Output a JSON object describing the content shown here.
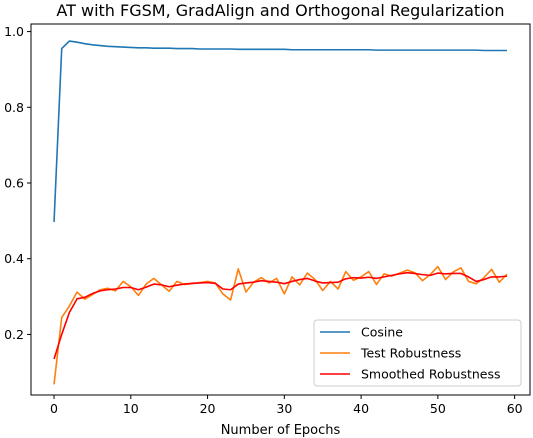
{
  "chart_data": {
    "type": "line",
    "title": "AT with FGSM, GradAlign and Orthogonal Regularization",
    "xlabel": "Number of Epochs",
    "ylabel": "",
    "xlim": [
      -3,
      62
    ],
    "ylim": [
      0.04,
      1.02
    ],
    "xticks": [
      0,
      10,
      20,
      30,
      40,
      50,
      60
    ],
    "yticks": [
      0.2,
      0.4,
      0.6,
      0.8,
      1.0
    ],
    "xtick_labels": [
      "0",
      "10",
      "20",
      "30",
      "40",
      "50",
      "60"
    ],
    "ytick_labels": [
      "0.2",
      "0.4",
      "0.6",
      "0.8",
      "1.0"
    ],
    "grid": false,
    "legend_position": "lower-right",
    "x": [
      0,
      1,
      2,
      3,
      4,
      5,
      6,
      7,
      8,
      9,
      10,
      11,
      12,
      13,
      14,
      15,
      16,
      17,
      18,
      19,
      20,
      21,
      22,
      23,
      24,
      25,
      26,
      27,
      28,
      29,
      30,
      31,
      32,
      33,
      34,
      35,
      36,
      37,
      38,
      39,
      40,
      41,
      42,
      43,
      44,
      45,
      46,
      47,
      48,
      49,
      50,
      51,
      52,
      53,
      54,
      55,
      56,
      57,
      58,
      59
    ],
    "series": [
      {
        "name": "Cosine",
        "color": "#1f77b4",
        "values": [
          0.497,
          0.955,
          0.975,
          0.972,
          0.968,
          0.965,
          0.963,
          0.961,
          0.96,
          0.959,
          0.958,
          0.957,
          0.957,
          0.956,
          0.956,
          0.956,
          0.955,
          0.955,
          0.955,
          0.954,
          0.954,
          0.954,
          0.954,
          0.954,
          0.953,
          0.953,
          0.953,
          0.953,
          0.953,
          0.953,
          0.953,
          0.952,
          0.952,
          0.952,
          0.952,
          0.952,
          0.952,
          0.952,
          0.952,
          0.952,
          0.952,
          0.952,
          0.951,
          0.951,
          0.951,
          0.951,
          0.951,
          0.951,
          0.951,
          0.951,
          0.951,
          0.951,
          0.951,
          0.951,
          0.951,
          0.951,
          0.95,
          0.95,
          0.95,
          0.95
        ]
      },
      {
        "name": "Test Robustness",
        "color": "#ff7f0e",
        "values": [
          0.068,
          0.245,
          0.275,
          0.312,
          0.293,
          0.305,
          0.318,
          0.322,
          0.315,
          0.34,
          0.326,
          0.303,
          0.333,
          0.348,
          0.331,
          0.314,
          0.34,
          0.332,
          0.334,
          0.337,
          0.34,
          0.336,
          0.307,
          0.291,
          0.373,
          0.312,
          0.338,
          0.35,
          0.336,
          0.348,
          0.307,
          0.352,
          0.331,
          0.362,
          0.345,
          0.316,
          0.34,
          0.32,
          0.366,
          0.343,
          0.352,
          0.366,
          0.332,
          0.36,
          0.354,
          0.362,
          0.37,
          0.363,
          0.342,
          0.358,
          0.379,
          0.345,
          0.365,
          0.376,
          0.34,
          0.334,
          0.35,
          0.372,
          0.338,
          0.359
        ]
      },
      {
        "name": "Smoothed Robustness",
        "color": "#ff0000",
        "values": [
          0.135,
          0.2,
          0.258,
          0.294,
          0.298,
          0.308,
          0.315,
          0.318,
          0.32,
          0.324,
          0.324,
          0.318,
          0.325,
          0.333,
          0.331,
          0.326,
          0.33,
          0.333,
          0.335,
          0.336,
          0.337,
          0.335,
          0.32,
          0.318,
          0.333,
          0.336,
          0.338,
          0.342,
          0.34,
          0.338,
          0.334,
          0.34,
          0.345,
          0.348,
          0.341,
          0.336,
          0.337,
          0.338,
          0.347,
          0.35,
          0.349,
          0.351,
          0.348,
          0.352,
          0.356,
          0.36,
          0.363,
          0.361,
          0.358,
          0.356,
          0.362,
          0.36,
          0.361,
          0.361,
          0.352,
          0.34,
          0.345,
          0.352,
          0.352,
          0.354
        ]
      }
    ]
  }
}
